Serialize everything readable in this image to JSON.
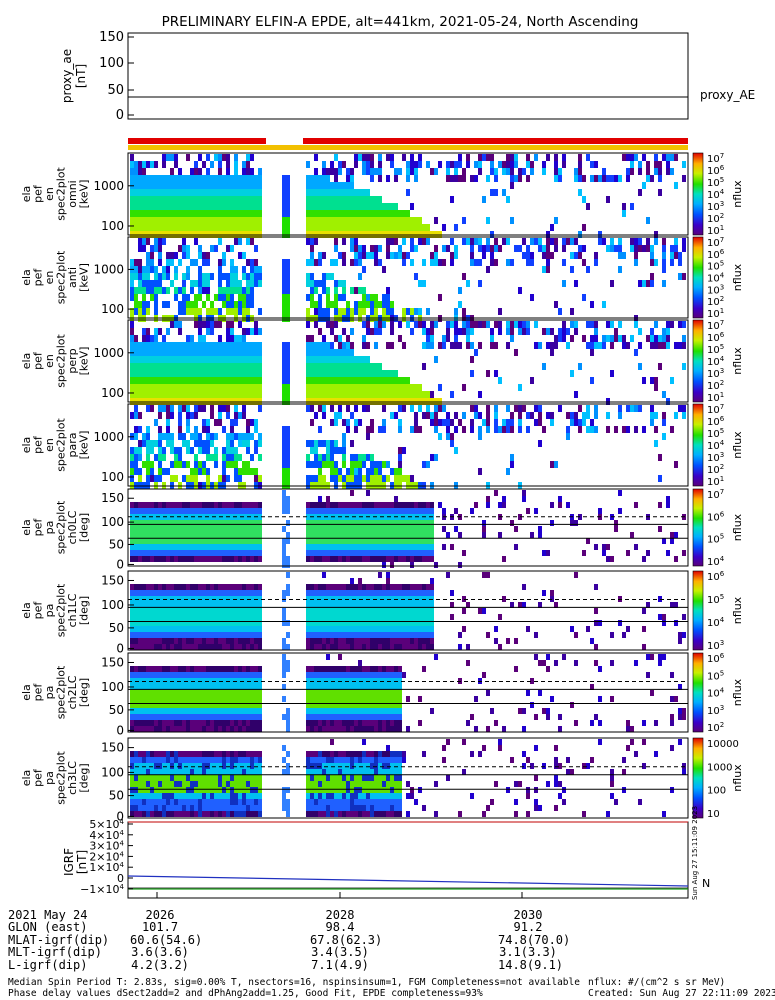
{
  "chart_data": {
    "type": "heatmap",
    "title": "PRELIMINARY ELFIN-A EPDE, alt=441km, 2021-05-24, North Ascending",
    "panels": [
      {
        "id": "proxy_ae",
        "type": "line",
        "ylabel": [
          "proxy_ae",
          "[nT]"
        ],
        "ylim": [
          0,
          150
        ],
        "yticks": [
          "150",
          "100",
          "50",
          "0"
        ],
        "series": [
          {
            "name": "proxy_AE",
            "values": [
              37,
              37
            ]
          }
        ]
      },
      {
        "id": "spec_omni",
        "ylabel": [
          "ela",
          "pef",
          "en",
          "spec2plot",
          "omni",
          "[keV]"
        ],
        "yticks": [
          "1000",
          "100"
        ],
        "cbar_ticks": [
          "10^7",
          "10^6",
          "10^5",
          "10^4",
          "10^3",
          "10^2",
          "10^1"
        ],
        "cbar_label": "nflux"
      },
      {
        "id": "spec_anti",
        "ylabel": [
          "ela",
          "pef",
          "en",
          "spec2plot",
          "anti",
          "[keV]"
        ],
        "yticks": [
          "1000",
          "100"
        ],
        "cbar_ticks": [
          "10^7",
          "10^6",
          "10^5",
          "10^4",
          "10^3",
          "10^2",
          "10^1"
        ],
        "cbar_label": "nflux"
      },
      {
        "id": "spec_perp",
        "ylabel": [
          "ela",
          "pef",
          "en",
          "spec2plot",
          "perp",
          "[keV]"
        ],
        "yticks": [
          "1000",
          "100"
        ],
        "cbar_ticks": [
          "10^7",
          "10^6",
          "10^5",
          "10^4",
          "10^3",
          "10^2",
          "10^1"
        ],
        "cbar_label": "nflux"
      },
      {
        "id": "spec_para",
        "ylabel": [
          "ela",
          "pef",
          "en",
          "spec2plot",
          "para",
          "[keV]"
        ],
        "yticks": [
          "1000",
          "100"
        ],
        "cbar_ticks": [
          "10^7",
          "10^6",
          "10^5",
          "10^4",
          "10^3",
          "10^2",
          "10^1"
        ],
        "cbar_label": "nflux"
      },
      {
        "id": "pa_ch0",
        "ylabel": [
          "ela",
          "pef",
          "pa",
          "spec2plot",
          "ch0LC",
          "[deg]"
        ],
        "yticks": [
          "150",
          "100",
          "50",
          "0"
        ],
        "cbar_ticks": [
          "10^7",
          "10^6",
          "10^5",
          "10^4"
        ],
        "cbar_label": "nflux"
      },
      {
        "id": "pa_ch1",
        "ylabel": [
          "ela",
          "pef",
          "pa",
          "spec2plot",
          "ch1LC",
          "[deg]"
        ],
        "yticks": [
          "150",
          "100",
          "50",
          "0"
        ],
        "cbar_ticks": [
          "10^6",
          "10^5",
          "10^4",
          "10^3"
        ],
        "cbar_label": "nflux"
      },
      {
        "id": "pa_ch2",
        "ylabel": [
          "ela",
          "pef",
          "pa",
          "spec2plot",
          "ch2LC",
          "[deg]"
        ],
        "yticks": [
          "150",
          "100",
          "50",
          "0"
        ],
        "cbar_ticks": [
          "10^6",
          "10^5",
          "10^4",
          "10^3",
          "10^2"
        ],
        "cbar_label": "nflux"
      },
      {
        "id": "pa_ch3",
        "ylabel": [
          "ela",
          "pef",
          "pa",
          "spec2plot",
          "ch3LC",
          "[deg]"
        ],
        "yticks": [
          "150",
          "100",
          "50",
          "0"
        ],
        "cbar_ticks": [
          "10000",
          "1000",
          "100",
          "10"
        ],
        "cbar_label": "nflux"
      },
      {
        "id": "igrf",
        "type": "line",
        "ylabel": [
          "IGRF",
          "[nT]"
        ],
        "yticks": [
          "5×10^4",
          "4×10^4",
          "3×10^4",
          "2×10^4",
          "1×10^4",
          "0",
          "−1×10^4"
        ],
        "legend": "N"
      }
    ],
    "xticks": [
      "2026",
      "2028",
      "2030"
    ]
  },
  "footer_table": {
    "rows": [
      {
        "label": "2021 May 24",
        "values": [
          "2026",
          "2028",
          "2030"
        ]
      },
      {
        "label": "GLON (east)",
        "values": [
          "101.7",
          "98.4",
          "91.2"
        ]
      },
      {
        "label": "MLAT-igrf(dip)",
        "values": [
          "60.6(54.6)",
          "67.8(62.3)",
          "74.8(70.0)"
        ]
      },
      {
        "label": "MLT-igrf(dip)",
        "values": [
          "3.6(3.6)",
          "3.4(3.5)",
          "3.1(3.3)"
        ]
      },
      {
        "label": "L-igrf(dip)",
        "values": [
          "4.2(3.2)",
          "7.1(4.9)",
          "14.8(9.1)"
        ]
      }
    ]
  },
  "footer": {
    "line1_left": "Median Spin Period T: 2.83s, sig=0.00% T, nsectors=16, nspinsinsum=1, FGM Completeness=not available",
    "line2_left": "Phase delay values dSect2add=2 and dPhAng2add=1.25, Good Fit, EPDE completeness=93%",
    "line1_right": "nflux: #/(cm^2 s sr MeV)",
    "line2_right": "Created: Sun Aug 27 22:11:09 2023",
    "side_stamp": "Sun Aug 27 15:11:09 2023"
  }
}
